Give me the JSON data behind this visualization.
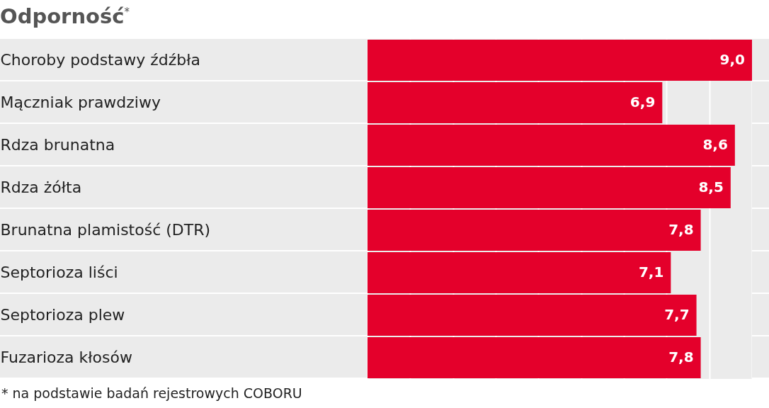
{
  "chart_data": {
    "type": "bar",
    "orientation": "horizontal",
    "title": "Odporność$^{*}$",
    "categories": [
      "Choroby podstawy źdźbła",
      "Mączniak prawdziwy",
      "Rdza brunatna",
      "Rdza żółta",
      "Brunatna plamistość (DTR)",
      "Septorioza liści",
      "Septorioza plew",
      "Fuzarioza kłosów"
    ],
    "values": [
      9.0,
      6.9,
      8.6,
      8.5,
      7.8,
      7.1,
      7.7,
      7.8
    ],
    "value_labels": [
      "9,0",
      "6,9",
      "8,6",
      "8,5",
      "7,8",
      "7,1",
      "7,7",
      "7,8"
    ],
    "color": "#e4002b",
    "xlim": [
      0,
      9
    ],
    "xticks": [
      {
        "value": 0,
        "label": null
      },
      {
        "value": 1,
        "label": null
      },
      {
        "value": 2,
        "label": null
      },
      {
        "value": 3,
        "label": null
      },
      {
        "value": 4,
        "label": null
      },
      {
        "value": 5,
        "label": null
      },
      {
        "value": 6,
        "label": null
      },
      {
        "value": 7,
        "label": null
      },
      {
        "value": 8,
        "label": null
      },
      {
        "value": 9,
        "label": null
      }
    ],
    "grid": "x",
    "tick_labels": "y",
    "annotations": [
      "* na podstawie badań rejestrowych COBORU"
    ]
  }
}
